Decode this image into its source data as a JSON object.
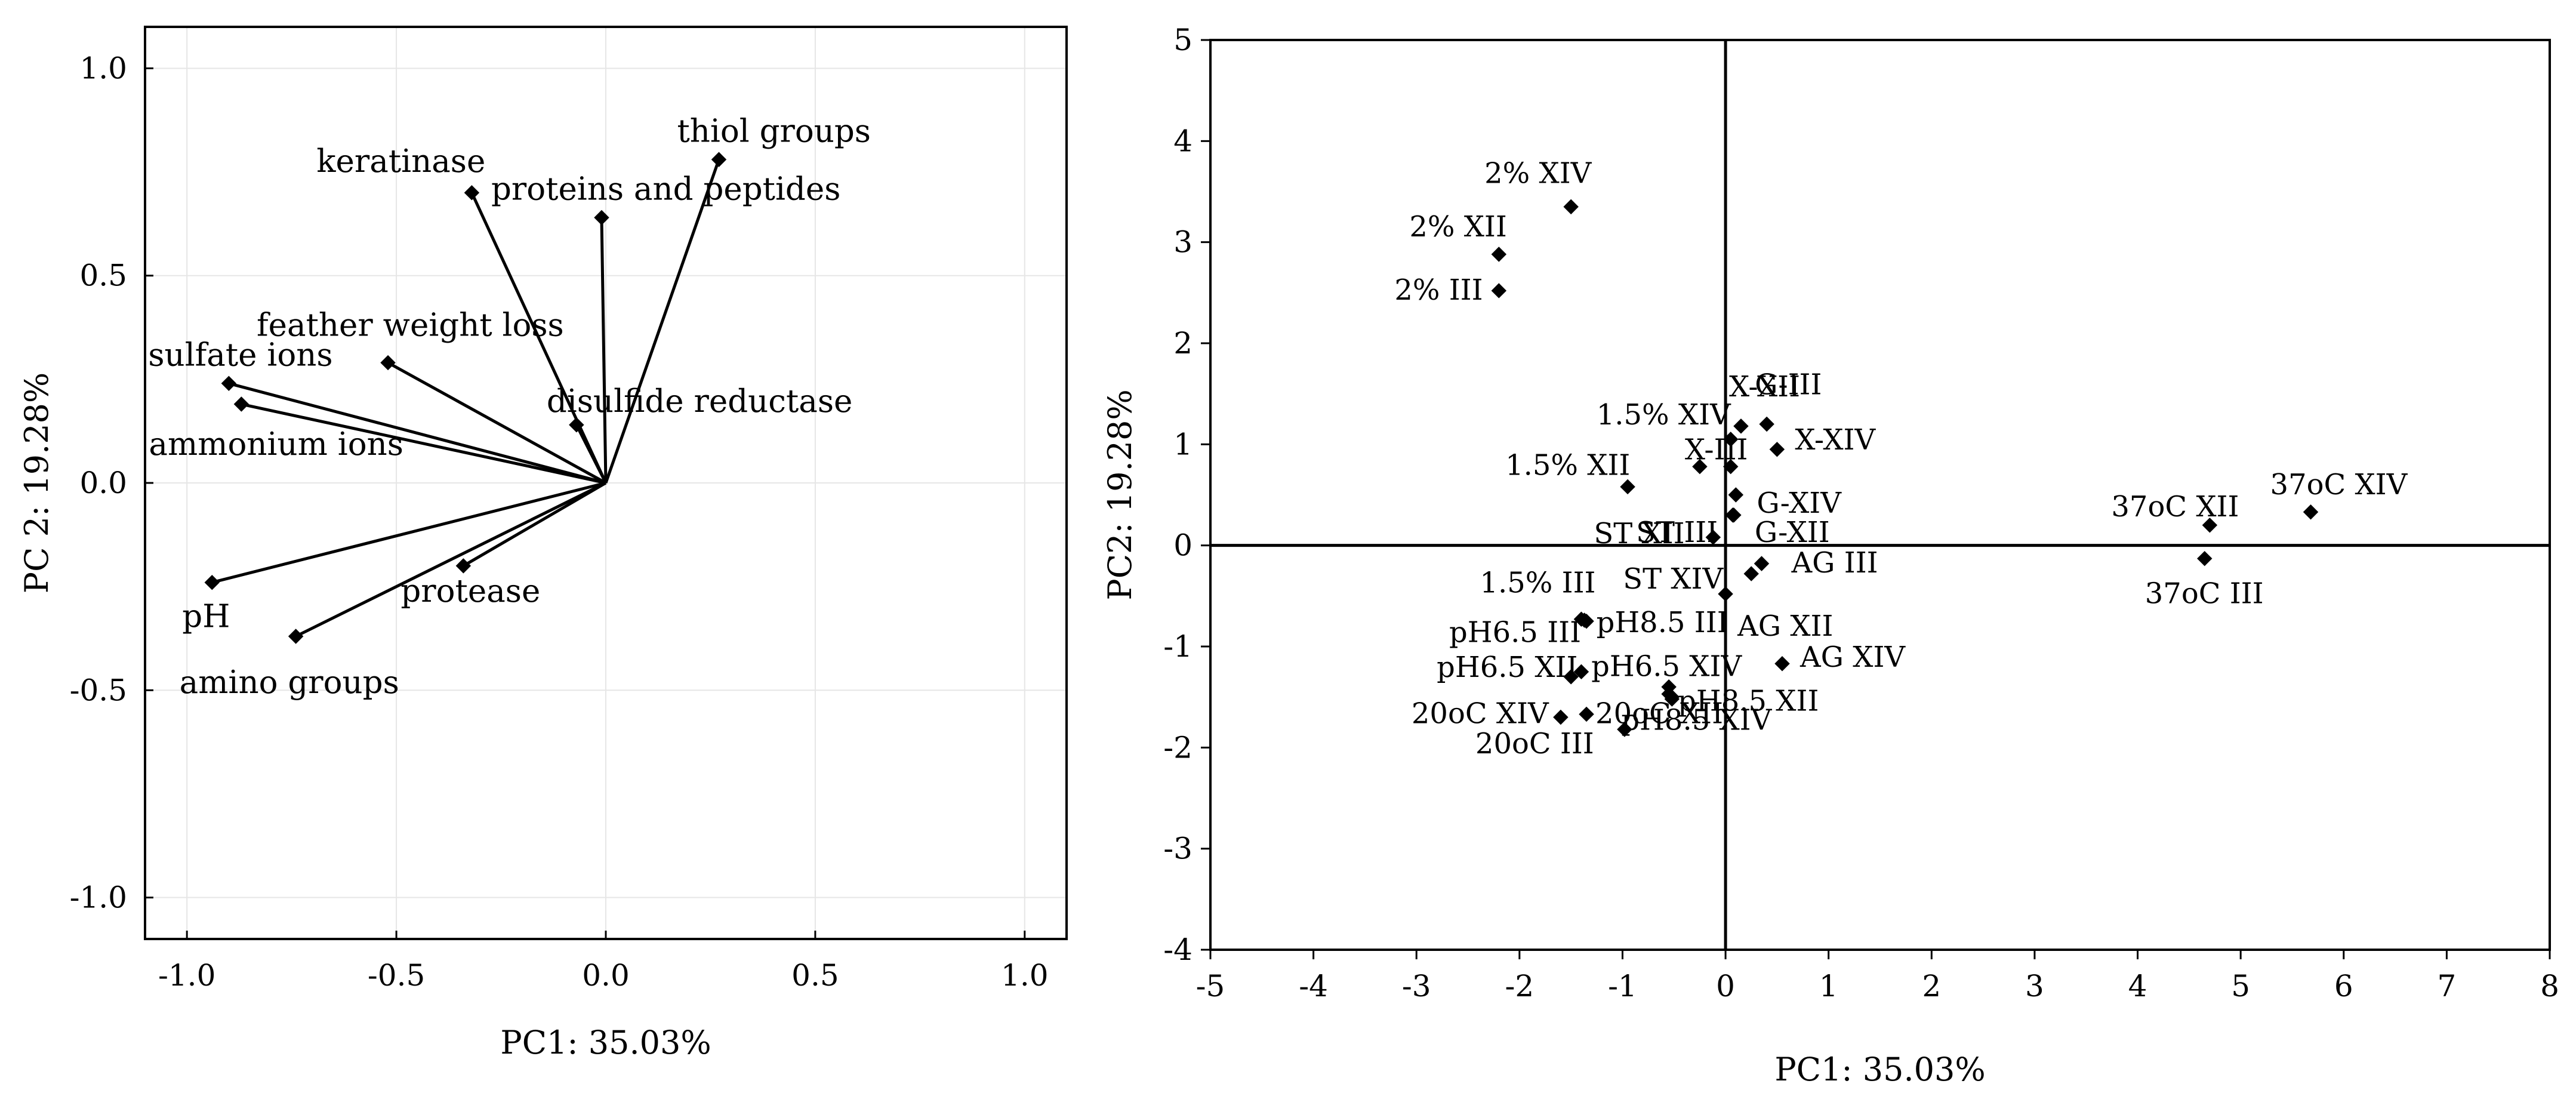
{
  "chart_data": [
    {
      "type": "biplot-loadings",
      "xlabel": "PC1: 35.03%",
      "ylabel": "PC 2: 19.28%",
      "xlim": [
        -1.1,
        1.1
      ],
      "ylim": [
        -1.1,
        1.1
      ],
      "xticks": [
        -1.0,
        -0.5,
        0.0,
        0.5,
        1.0
      ],
      "yticks": [
        -1.0,
        -0.5,
        0.0,
        0.5,
        1.0
      ],
      "xtick_labels": [
        "-1.0",
        "-0.5",
        "0.0",
        "0.5",
        "1.0"
      ],
      "ytick_labels": [
        "-1.0",
        "-0.5",
        "0.0",
        "0.5",
        "1.0"
      ],
      "grid": true,
      "vectors": [
        {
          "name": "thiol groups",
          "x": 0.27,
          "y": 0.78
        },
        {
          "name": "keratinase",
          "x": -0.32,
          "y": 0.7
        },
        {
          "name": "proteins and peptides",
          "x": -0.01,
          "y": 0.64
        },
        {
          "name": "feather weight loss",
          "x": -0.52,
          "y": 0.29
        },
        {
          "name": "sulfate ions",
          "x": -0.9,
          "y": 0.24
        },
        {
          "name": "ammonium ions",
          "x": -0.87,
          "y": 0.19
        },
        {
          "name": "disulfide reductase",
          "x": -0.07,
          "y": 0.14
        },
        {
          "name": "pH",
          "x": -0.94,
          "y": -0.24
        },
        {
          "name": "protease",
          "x": -0.34,
          "y": -0.2
        },
        {
          "name": "amino groups",
          "x": -0.74,
          "y": -0.37
        }
      ]
    },
    {
      "type": "scatter",
      "xlabel": "PC1: 35.03%",
      "ylabel": "PC2: 19.28%",
      "xlim": [
        -5,
        8
      ],
      "ylim": [
        -4,
        5
      ],
      "xticks": [
        -5,
        -4,
        -3,
        -2,
        -1,
        0,
        1,
        2,
        3,
        4,
        5,
        6,
        7,
        8
      ],
      "yticks": [
        -4,
        -3,
        -2,
        -1,
        0,
        1,
        2,
        3,
        4,
        5
      ],
      "xtick_labels": [
        "-5",
        "-4",
        "-3",
        "-2",
        "-1",
        "0",
        "1",
        "2",
        "3",
        "4",
        "5",
        "6",
        "7",
        "8"
      ],
      "ytick_labels": [
        "-4",
        "-3",
        "-2",
        "-1",
        "0",
        "1",
        "2",
        "3",
        "4",
        "5"
      ],
      "grid": false,
      "reference_lines": {
        "x": 0,
        "y": 0
      },
      "points": [
        {
          "name": "2% XIV",
          "x": -1.5,
          "y": 3.35
        },
        {
          "name": "2% XII",
          "x": -2.2,
          "y": 2.88
        },
        {
          "name": "2% III",
          "x": -2.2,
          "y": 2.52
        },
        {
          "name": "1.5% XIV",
          "x": 0.05,
          "y": 1.05
        },
        {
          "name": "1.5% XII",
          "x": -0.95,
          "y": 0.58
        },
        {
          "name": "X-XII",
          "x": 0.15,
          "y": 1.18
        },
        {
          "name": "G-III",
          "x": 0.4,
          "y": 1.2
        },
        {
          "name": "X-XIV",
          "x": 0.5,
          "y": 0.95
        },
        {
          "name": "X-III",
          "x": -0.25,
          "y": 0.78
        },
        {
          "name": "",
          "x": 0.05,
          "y": 0.78
        },
        {
          "name": "G-XIV",
          "x": 0.1,
          "y": 0.5
        },
        {
          "name": "ST III",
          "x": 0.07,
          "y": 0.3
        },
        {
          "name": "G-XII",
          "x": 0.08,
          "y": 0.3
        },
        {
          "name": "ST XII",
          "x": -0.12,
          "y": 0.08
        },
        {
          "name": "37oC XII",
          "x": 4.7,
          "y": 0.2
        },
        {
          "name": "37oC XIV",
          "x": 5.68,
          "y": 0.33
        },
        {
          "name": "37oC III",
          "x": 4.65,
          "y": -0.13
        },
        {
          "name": "AG III",
          "x": 0.35,
          "y": -0.18
        },
        {
          "name": "ST XIV",
          "x": 0.25,
          "y": -0.28
        },
        {
          "name": "AG XII",
          "x": 0.0,
          "y": -0.48
        },
        {
          "name": "1.5% III",
          "x": -1.4,
          "y": -0.73
        },
        {
          "name": "pH8.5 III",
          "x": -1.37,
          "y": -0.74
        },
        {
          "name": "pH6.5 III",
          "x": -1.35,
          "y": -0.75
        },
        {
          "name": "AG XIV",
          "x": 0.55,
          "y": -1.17
        },
        {
          "name": "pH6.5 XII",
          "x": -1.5,
          "y": -1.3
        },
        {
          "name": "",
          "x": -1.4,
          "y": -1.25
        },
        {
          "name": "pH6.5 XIV",
          "x": -0.55,
          "y": -1.4
        },
        {
          "name": "pH8.5 XII",
          "x": -0.55,
          "y": -1.47
        },
        {
          "name": "",
          "x": -0.52,
          "y": -1.52
        },
        {
          "name": "20oC XIV",
          "x": -1.6,
          "y": -1.7
        },
        {
          "name": "20oC XII",
          "x": -1.35,
          "y": -1.67
        },
        {
          "name": "20oC III",
          "x": -0.98,
          "y": -1.82
        },
        {
          "name": "pH8.5 XIV",
          "x": -0.52,
          "y": -1.5
        }
      ]
    }
  ]
}
